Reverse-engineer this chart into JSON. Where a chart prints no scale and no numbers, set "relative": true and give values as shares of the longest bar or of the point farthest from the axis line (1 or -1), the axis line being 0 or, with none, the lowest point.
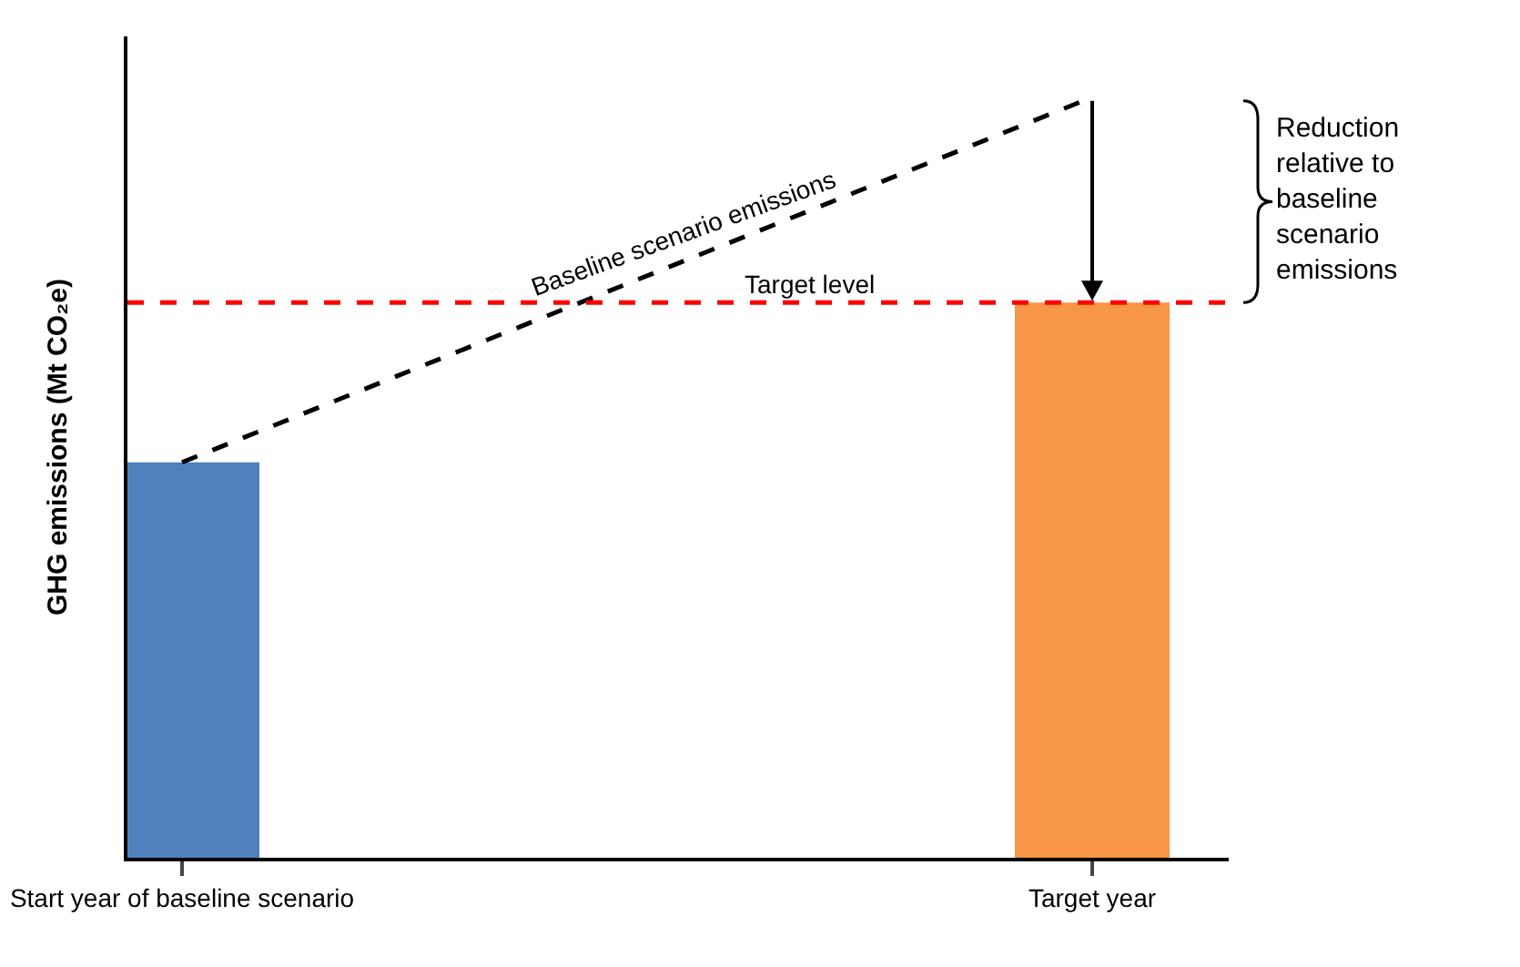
{
  "chart_data": {
    "type": "bar",
    "relative": true,
    "ylabel": "GHG emissions (Mt CO₂e)",
    "categories": [
      "Start year of baseline scenario",
      "Target year"
    ],
    "series": [
      {
        "colors": [
          "#4f81bd",
          "#f79646"
        ],
        "values": [
          0.52,
          0.73
        ]
      },
      {
        "type": "line",
        "color": "#000000",
        "line_style": "dashed",
        "marker": "none",
        "values": [
          0.52,
          1
        ]
      }
    ],
    "ref_lines": [
      {
        "axis": "y",
        "value": 0.73,
        "label": "Target level",
        "color": "#ff0000",
        "line_style": "dashed"
      }
    ],
    "annotations": [
      "Baseline scenario emissions",
      "Reduction relative to baseline scenario emissions"
    ],
    "grid": false
  }
}
